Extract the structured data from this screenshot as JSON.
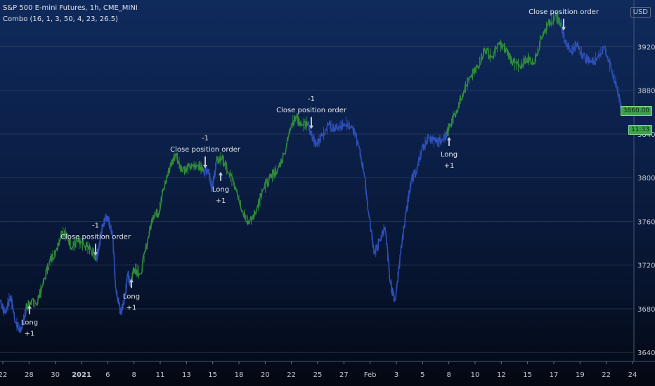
{
  "header": {
    "title": "S&P 500 E-mini Futures, 1h, CME_MINI",
    "indicator": "Combo (16, 1, 3, 50, 4, 23, 26.5)",
    "currency": "USD"
  },
  "price_badges": [
    "3860.00",
    "11:33"
  ],
  "chart_data": {
    "type": "line",
    "title": "S&P 500 E-mini Futures, 1h, CME_MINI",
    "xlabel": "",
    "ylabel": "",
    "ylim": [
      3635,
      3955
    ],
    "grid": true,
    "y_ticks": [
      3640.0,
      3680.0,
      3720.0,
      3760.0,
      3800.0,
      3840.0,
      3880.0,
      3920.0
    ],
    "y_tick_labels": [
      "3640.00",
      "3680.00",
      "3720.00",
      "3760.00",
      "3800.00",
      "3840.00",
      "3880.00",
      "3920.00"
    ],
    "x_tick_labels": [
      "22",
      "28",
      "30",
      "2021",
      "6",
      "8",
      "11",
      "13",
      "15",
      "18",
      "20",
      "22",
      "25",
      "27",
      "Feb",
      "3",
      "5",
      "8",
      "10",
      "12",
      "15",
      "17",
      "19",
      "22",
      "24"
    ],
    "series": [],
    "points": [
      {
        "x": 0,
        "y": 3688,
        "c": "b"
      },
      {
        "x": 0.7,
        "y": 3676,
        "c": "b"
      },
      {
        "x": 1.5,
        "y": 3692,
        "c": "b"
      },
      {
        "x": 2.2,
        "y": 3668,
        "c": "b"
      },
      {
        "x": 3,
        "y": 3660,
        "c": "b"
      },
      {
        "x": 3.7,
        "y": 3680,
        "c": "b"
      },
      {
        "x": 4.3,
        "y": 3686,
        "c": "g"
      },
      {
        "x": 5.2,
        "y": 3684,
        "c": "g"
      },
      {
        "x": 6,
        "y": 3700,
        "c": "g"
      },
      {
        "x": 7,
        "y": 3722,
        "c": "g"
      },
      {
        "x": 8,
        "y": 3734,
        "c": "g"
      },
      {
        "x": 8.8,
        "y": 3750,
        "c": "g"
      },
      {
        "x": 9.5,
        "y": 3748,
        "c": "g"
      },
      {
        "x": 10.2,
        "y": 3736,
        "c": "g"
      },
      {
        "x": 11,
        "y": 3742,
        "c": "g"
      },
      {
        "x": 12,
        "y": 3738,
        "c": "g"
      },
      {
        "x": 13,
        "y": 3734,
        "c": "g"
      },
      {
        "x": 13.7,
        "y": 3726,
        "c": "g"
      },
      {
        "x": 14.1,
        "y": 3736,
        "c": "b"
      },
      {
        "x": 14.6,
        "y": 3758,
        "c": "b"
      },
      {
        "x": 15.3,
        "y": 3765,
        "c": "b"
      },
      {
        "x": 16,
        "y": 3748,
        "c": "b"
      },
      {
        "x": 16.5,
        "y": 3698,
        "c": "b"
      },
      {
        "x": 17.2,
        "y": 3675,
        "c": "b"
      },
      {
        "x": 17.8,
        "y": 3692,
        "c": "b"
      },
      {
        "x": 18.2,
        "y": 3712,
        "c": "b"
      },
      {
        "x": 18.6,
        "y": 3700,
        "c": "b"
      },
      {
        "x": 19,
        "y": 3718,
        "c": "g"
      },
      {
        "x": 20,
        "y": 3712,
        "c": "g"
      },
      {
        "x": 21,
        "y": 3742,
        "c": "g"
      },
      {
        "x": 21.8,
        "y": 3766,
        "c": "g"
      },
      {
        "x": 22.6,
        "y": 3768,
        "c": "g"
      },
      {
        "x": 23.2,
        "y": 3788,
        "c": "g"
      },
      {
        "x": 24.2,
        "y": 3810,
        "c": "g"
      },
      {
        "x": 25,
        "y": 3822,
        "c": "g"
      },
      {
        "x": 26,
        "y": 3805,
        "c": "g"
      },
      {
        "x": 27,
        "y": 3810,
        "c": "g"
      },
      {
        "x": 28.2,
        "y": 3812,
        "c": "g"
      },
      {
        "x": 29,
        "y": 3806,
        "c": "g"
      },
      {
        "x": 29.6,
        "y": 3808,
        "c": "b"
      },
      {
        "x": 30.2,
        "y": 3790,
        "c": "b"
      },
      {
        "x": 30.8,
        "y": 3815,
        "c": "b"
      },
      {
        "x": 31.6,
        "y": 3818,
        "c": "g"
      },
      {
        "x": 32.5,
        "y": 3805,
        "c": "g"
      },
      {
        "x": 33.5,
        "y": 3792,
        "c": "g"
      },
      {
        "x": 34.5,
        "y": 3770,
        "c": "g"
      },
      {
        "x": 35.5,
        "y": 3758,
        "c": "g"
      },
      {
        "x": 36.5,
        "y": 3770,
        "c": "g"
      },
      {
        "x": 37.5,
        "y": 3790,
        "c": "g"
      },
      {
        "x": 38.5,
        "y": 3800,
        "c": "g"
      },
      {
        "x": 39.5,
        "y": 3808,
        "c": "g"
      },
      {
        "x": 40.5,
        "y": 3822,
        "c": "g"
      },
      {
        "x": 41.5,
        "y": 3850,
        "c": "g"
      },
      {
        "x": 42.2,
        "y": 3855,
        "c": "g"
      },
      {
        "x": 43,
        "y": 3848,
        "c": "g"
      },
      {
        "x": 43.8,
        "y": 3850,
        "c": "g"
      },
      {
        "x": 44.4,
        "y": 3838,
        "c": "b"
      },
      {
        "x": 45,
        "y": 3830,
        "c": "b"
      },
      {
        "x": 45.8,
        "y": 3838,
        "c": "b"
      },
      {
        "x": 46.8,
        "y": 3848,
        "c": "b"
      },
      {
        "x": 48,
        "y": 3845,
        "c": "b"
      },
      {
        "x": 49,
        "y": 3850,
        "c": "b"
      },
      {
        "x": 50,
        "y": 3848,
        "c": "b"
      },
      {
        "x": 51,
        "y": 3830,
        "c": "b"
      },
      {
        "x": 51.8,
        "y": 3805,
        "c": "b"
      },
      {
        "x": 52.5,
        "y": 3765,
        "c": "b"
      },
      {
        "x": 53.3,
        "y": 3730,
        "c": "b"
      },
      {
        "x": 54,
        "y": 3742,
        "c": "b"
      },
      {
        "x": 54.8,
        "y": 3755,
        "c": "b"
      },
      {
        "x": 55.5,
        "y": 3705,
        "c": "b"
      },
      {
        "x": 56.2,
        "y": 3688,
        "c": "b"
      },
      {
        "x": 57,
        "y": 3730,
        "c": "b"
      },
      {
        "x": 57.8,
        "y": 3768,
        "c": "b"
      },
      {
        "x": 58.5,
        "y": 3798,
        "c": "b"
      },
      {
        "x": 59.2,
        "y": 3805,
        "c": "b"
      },
      {
        "x": 60,
        "y": 3825,
        "c": "b"
      },
      {
        "x": 61,
        "y": 3838,
        "c": "b"
      },
      {
        "x": 62,
        "y": 3832,
        "c": "b"
      },
      {
        "x": 63,
        "y": 3835,
        "c": "b"
      },
      {
        "x": 63.6,
        "y": 3840,
        "c": "b"
      },
      {
        "x": 64,
        "y": 3848,
        "c": "g"
      },
      {
        "x": 65,
        "y": 3862,
        "c": "g"
      },
      {
        "x": 66,
        "y": 3880,
        "c": "g"
      },
      {
        "x": 67,
        "y": 3892,
        "c": "g"
      },
      {
        "x": 68,
        "y": 3902,
        "c": "g"
      },
      {
        "x": 69,
        "y": 3918,
        "c": "g"
      },
      {
        "x": 70,
        "y": 3910,
        "c": "g"
      },
      {
        "x": 71,
        "y": 3922,
        "c": "g"
      },
      {
        "x": 72,
        "y": 3918,
        "c": "g"
      },
      {
        "x": 73,
        "y": 3905,
        "c": "g"
      },
      {
        "x": 74,
        "y": 3902,
        "c": "g"
      },
      {
        "x": 75,
        "y": 3910,
        "c": "g"
      },
      {
        "x": 76,
        "y": 3905,
        "c": "g"
      },
      {
        "x": 77,
        "y": 3928,
        "c": "g"
      },
      {
        "x": 78,
        "y": 3940,
        "c": "g"
      },
      {
        "x": 79,
        "y": 3948,
        "c": "g"
      },
      {
        "x": 79.8,
        "y": 3942,
        "c": "g"
      },
      {
        "x": 80.4,
        "y": 3926,
        "c": "b"
      },
      {
        "x": 81.2,
        "y": 3915,
        "c": "b"
      },
      {
        "x": 82,
        "y": 3922,
        "c": "b"
      },
      {
        "x": 83,
        "y": 3912,
        "c": "b"
      },
      {
        "x": 84,
        "y": 3905,
        "c": "b"
      },
      {
        "x": 85,
        "y": 3910,
        "c": "b"
      },
      {
        "x": 86,
        "y": 3920,
        "c": "b"
      },
      {
        "x": 87,
        "y": 3898,
        "c": "b"
      },
      {
        "x": 87.8,
        "y": 3884,
        "c": "b"
      },
      {
        "x": 88.4,
        "y": 3862,
        "c": "b"
      }
    ],
    "annotations": [
      {
        "x": 4.2,
        "y": 3686,
        "dir": "up",
        "lines": [
          "Long",
          "+1"
        ]
      },
      {
        "x": 13.6,
        "y": 3726,
        "dir": "down",
        "lines": [
          "-1",
          "Close position order"
        ]
      },
      {
        "x": 18.7,
        "y": 3710,
        "dir": "up",
        "lines": [
          "Long",
          "+1"
        ]
      },
      {
        "x": 29.2,
        "y": 3806,
        "dir": "down",
        "lines": [
          "-1",
          "Close position order"
        ]
      },
      {
        "x": 31.4,
        "y": 3808,
        "dir": "up",
        "lines": [
          "Long",
          "+1"
        ]
      },
      {
        "x": 44.3,
        "y": 3842,
        "dir": "down",
        "lines": [
          "-1",
          "Close position order"
        ]
      },
      {
        "x": 63.9,
        "y": 3840,
        "dir": "up",
        "lines": [
          "Long",
          "+1"
        ]
      },
      {
        "x": 80.2,
        "y": 3932,
        "dir": "down",
        "lines": [
          "Close position order"
        ]
      }
    ],
    "colors": {
      "green": "#2f8a3a",
      "blue": "#2e4fb8",
      "grid": "#3b4a6b"
    }
  }
}
